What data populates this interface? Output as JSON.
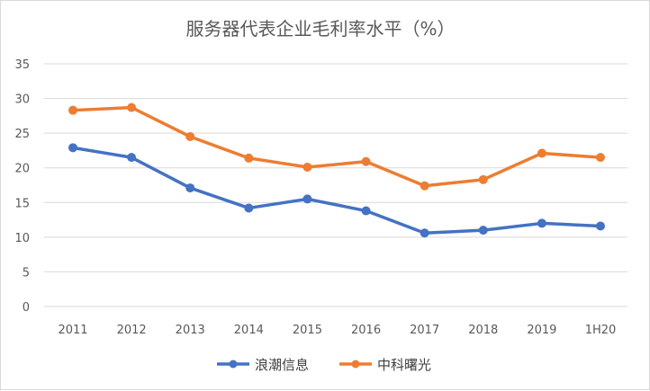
{
  "chart_data": {
    "type": "line",
    "title": "服务器代表企业毛利率水平（%）",
    "categories": [
      "2011",
      "2012",
      "2013",
      "2014",
      "2015",
      "2016",
      "2017",
      "2018",
      "2019",
      "1H20"
    ],
    "ylim": [
      0,
      35
    ],
    "yticks": [
      "0",
      "5",
      "10",
      "15",
      "20",
      "25",
      "30",
      "35"
    ],
    "grid": true,
    "legend_position": "bottom",
    "series": [
      {
        "name": "浪潮信息",
        "color": "#4472c4",
        "values": [
          22.9,
          21.5,
          17.1,
          14.2,
          15.5,
          13.8,
          10.6,
          11.0,
          12.0,
          11.6
        ]
      },
      {
        "name": "中科曙光",
        "color": "#ed7d31",
        "values": [
          28.3,
          28.7,
          24.5,
          21.4,
          20.1,
          20.9,
          17.4,
          18.3,
          22.1,
          21.5
        ]
      }
    ]
  }
}
